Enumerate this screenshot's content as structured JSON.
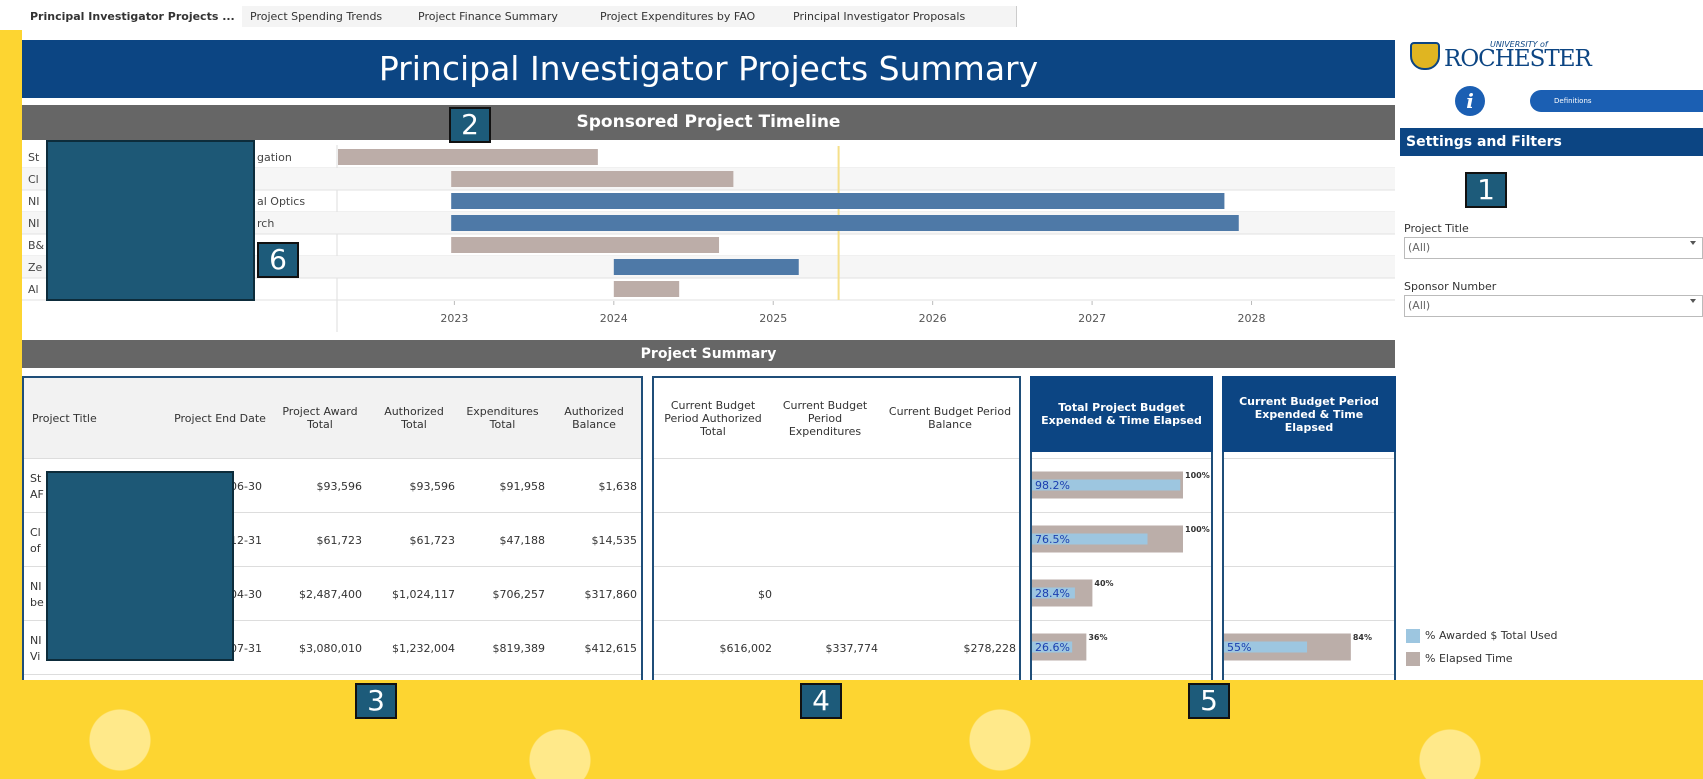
{
  "tabs": [
    "Principal Investigator Projects ...",
    "Project Spending Trends",
    "Project Finance Summary",
    "Project Expenditures by FAO",
    "Principal Investigator Proposals"
  ],
  "header": {
    "title": "Principal Investigator Projects Summary"
  },
  "logo": {
    "small": "UNIVERSITY of",
    "name": "ROCHESTER"
  },
  "info_icon": "i",
  "definitions_button": "Definitions",
  "badges": [
    "1",
    "2",
    "3",
    "4",
    "5",
    "6"
  ],
  "sidebar": {
    "title": "Settings and Filters",
    "filters": [
      {
        "label": "Project Title",
        "value": "(All)"
      },
      {
        "label": "Sponsor Number",
        "value": "(All)"
      }
    ]
  },
  "legend": [
    {
      "label": "% Awarded $ Total Used",
      "color": "#9dc6e0"
    },
    {
      "label": "% Elapsed Time",
      "color": "#bbaea9"
    }
  ],
  "timeline": {
    "title": "Sponsored Project Timeline",
    "xlim": [
      2022.27,
      2028.9
    ],
    "xticks": [
      2023,
      2024,
      2025,
      2026,
      2027,
      2028
    ],
    "reference": 2025.41,
    "rows": [
      {
        "label": "St",
        "label_end": "gation",
        "start": 2022.27,
        "end": 2023.9,
        "color": "#bcada8"
      },
      {
        "label": "Cl",
        "start": 2022.98,
        "end": 2024.75,
        "color": "#bcada8"
      },
      {
        "label": "NI",
        "label_end": "al Optics",
        "start": 2022.98,
        "end": 2027.83,
        "color": "#4e79a7"
      },
      {
        "label": "NI",
        "label_end": "rch",
        "start": 2022.98,
        "end": 2027.92,
        "color": "#4e79a7"
      },
      {
        "label": "B&",
        "start": 2022.98,
        "end": 2024.66,
        "color": "#bcada8"
      },
      {
        "label": "Ze",
        "start": 2024.0,
        "end": 2025.16,
        "color": "#4e79a7"
      },
      {
        "label": "Al",
        "start": 2024.0,
        "end": 2024.41,
        "color": "#bcada8"
      }
    ]
  },
  "summary": {
    "title": "Project Summary",
    "columns": [
      "Project Title",
      "Project End Date",
      "Project Award Total",
      "Authorized Total",
      "Expenditures Total",
      "Authorized Balance",
      "Current Budget Period Authorized Total",
      "Current Budget Period Expenditures",
      "Current Budget Period Balance"
    ],
    "rows": [
      {
        "title": [
          "St",
          "AF"
        ],
        "end_date": "06-30",
        "cells": [
          "$93,596",
          "$93,596",
          "$91,958",
          "$1,638"
        ],
        "current": [
          null,
          null,
          null
        ]
      },
      {
        "title": [
          "Cl",
          "of"
        ],
        "end_date": "12-31",
        "cells": [
          "$61,723",
          "$61,723",
          "$47,188",
          "$14,535"
        ],
        "current": [
          null,
          null,
          null
        ]
      },
      {
        "title": [
          "NI",
          "be"
        ],
        "end_date": "04-30",
        "cells": [
          "$2,487,400",
          "$1,024,117",
          "$706,257",
          "$317,860"
        ],
        "current": [
          "$0",
          null,
          null
        ]
      },
      {
        "title": [
          "NI",
          "Vi"
        ],
        "end_date": "07-31",
        "cells": [
          "$3,080,010",
          "$1,232,004",
          "$819,389",
          "$412,615"
        ],
        "current": [
          "$616,002",
          "$337,774",
          "$278,228"
        ]
      }
    ]
  },
  "budget_charts": [
    {
      "title": "Total Project Budget Expended & Time Elapsed",
      "xlim": [
        0,
        100
      ],
      "series": [
        {
          "name": "% Elapsed Time",
          "color": "#bbaea9",
          "values": [
            100,
            100,
            40,
            36
          ],
          "value_labels": [
            "100%",
            "100%",
            "40%",
            "36%"
          ]
        },
        {
          "name": "% Awarded $ Total Used",
          "color": "#9dc6e0",
          "values": [
            98.2,
            76.5,
            28.4,
            26.6
          ],
          "value_labels": [
            "98.2%",
            "76.5%",
            "28.4%",
            "26.6%"
          ]
        }
      ]
    },
    {
      "title": "Current Budget Period Expended & Time Elapsed",
      "xlim": [
        0,
        100
      ],
      "series": [
        {
          "name": "% Elapsed Time",
          "color": "#bbaea9",
          "values": [
            null,
            null,
            null,
            84
          ],
          "value_labels": [
            null,
            null,
            null,
            "84%"
          ]
        },
        {
          "name": "% Awarded $ Total Used",
          "color": "#9dc6e0",
          "values": [
            null,
            null,
            null,
            55
          ],
          "value_labels": [
            null,
            null,
            null,
            "55%"
          ]
        }
      ]
    }
  ]
}
